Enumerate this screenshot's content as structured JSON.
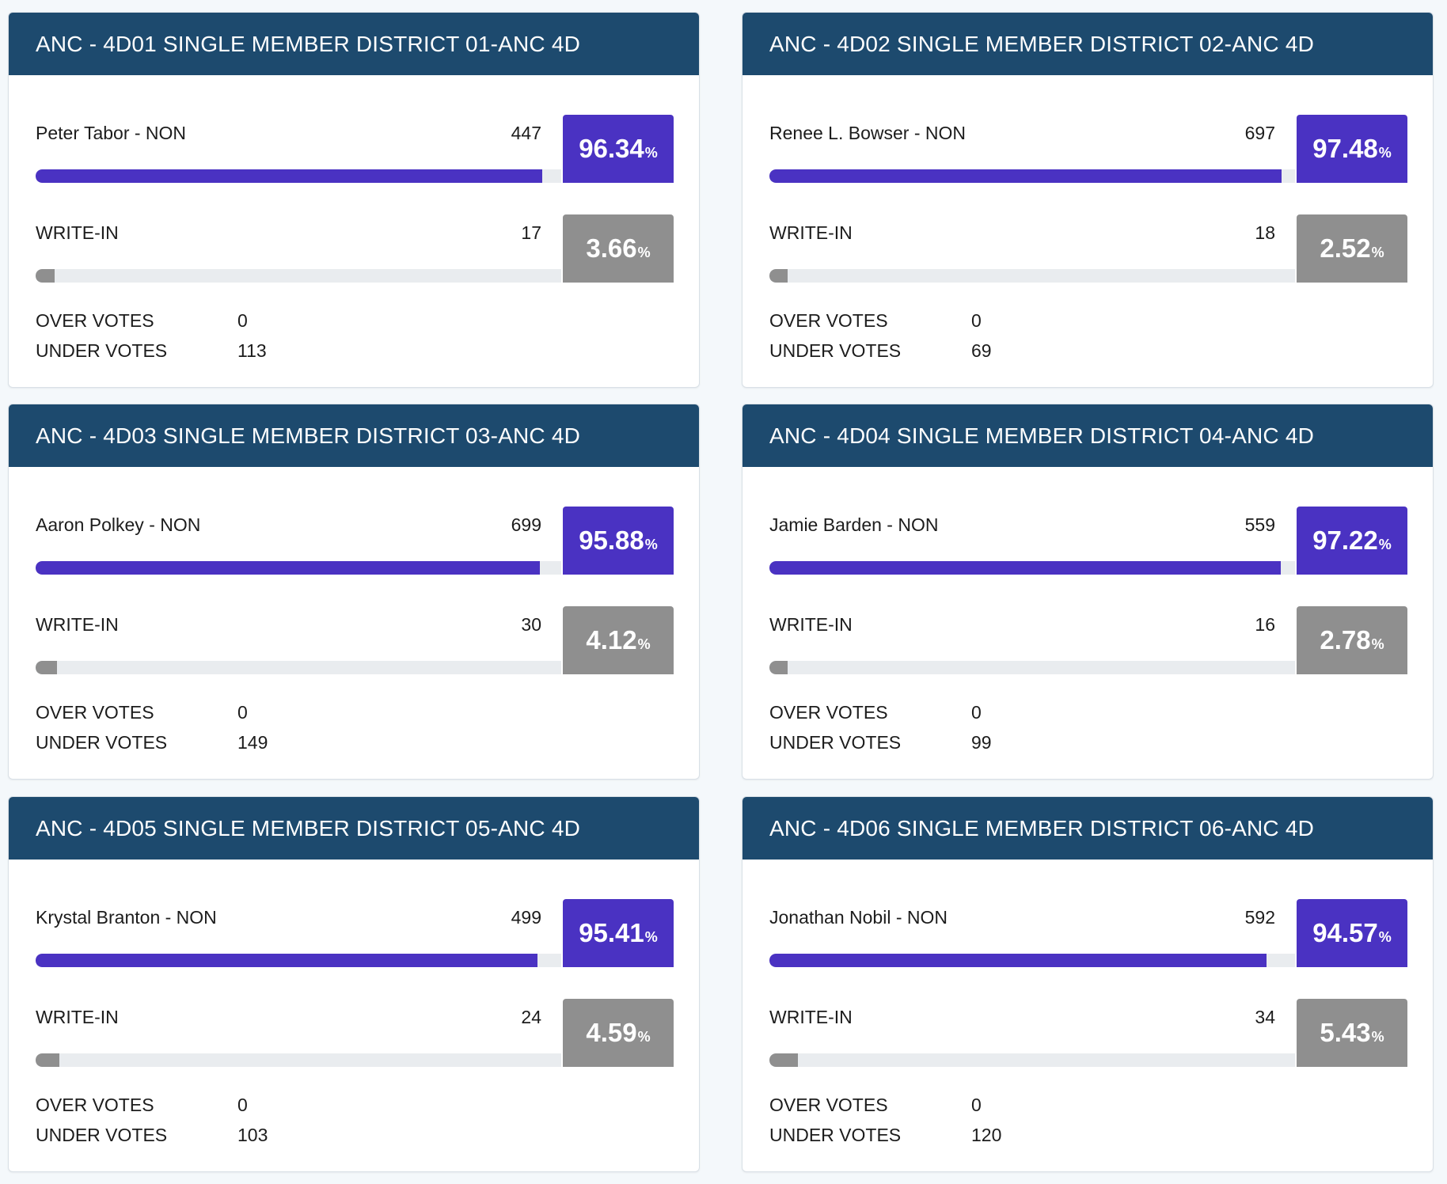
{
  "colors": {
    "header_bg": "#1d4a6e",
    "winner": "#4a32c2",
    "writein": "#8f8f8f"
  },
  "districts": [
    {
      "title": "ANC - 4D01 SINGLE MEMBER DISTRICT 01-ANC 4D",
      "candidates": [
        {
          "name": "Peter Tabor - NON",
          "votes": "447",
          "pct": "96.34",
          "pct_symbol": "%",
          "share": 96.34,
          "kind": "winner"
        },
        {
          "name": "WRITE-IN",
          "votes": "17",
          "pct": "3.66",
          "pct_symbol": "%",
          "share": 3.66,
          "kind": "writein"
        }
      ],
      "over_votes_label": "OVER VOTES",
      "over_votes": "0",
      "under_votes_label": "UNDER VOTES",
      "under_votes": "113"
    },
    {
      "title": "ANC - 4D02 SINGLE MEMBER DISTRICT 02-ANC 4D",
      "candidates": [
        {
          "name": "Renee L. Bowser - NON",
          "votes": "697",
          "pct": "97.48",
          "pct_symbol": "%",
          "share": 97.48,
          "kind": "winner"
        },
        {
          "name": "WRITE-IN",
          "votes": "18",
          "pct": "2.52",
          "pct_symbol": "%",
          "share": 2.52,
          "kind": "writein"
        }
      ],
      "over_votes_label": "OVER VOTES",
      "over_votes": "0",
      "under_votes_label": "UNDER VOTES",
      "under_votes": "69"
    },
    {
      "title": "ANC - 4D03 SINGLE MEMBER DISTRICT 03-ANC 4D",
      "candidates": [
        {
          "name": "Aaron Polkey - NON",
          "votes": "699",
          "pct": "95.88",
          "pct_symbol": "%",
          "share": 95.88,
          "kind": "winner"
        },
        {
          "name": "WRITE-IN",
          "votes": "30",
          "pct": "4.12",
          "pct_symbol": "%",
          "share": 4.12,
          "kind": "writein"
        }
      ],
      "over_votes_label": "OVER VOTES",
      "over_votes": "0",
      "under_votes_label": "UNDER VOTES",
      "under_votes": "149"
    },
    {
      "title": "ANC - 4D04 SINGLE MEMBER DISTRICT 04-ANC 4D",
      "candidates": [
        {
          "name": "Jamie Barden - NON",
          "votes": "559",
          "pct": "97.22",
          "pct_symbol": "%",
          "share": 97.22,
          "kind": "winner"
        },
        {
          "name": "WRITE-IN",
          "votes": "16",
          "pct": "2.78",
          "pct_symbol": "%",
          "share": 2.78,
          "kind": "writein"
        }
      ],
      "over_votes_label": "OVER VOTES",
      "over_votes": "0",
      "under_votes_label": "UNDER VOTES",
      "under_votes": "99"
    },
    {
      "title": "ANC - 4D05 SINGLE MEMBER DISTRICT 05-ANC 4D",
      "candidates": [
        {
          "name": "Krystal Branton - NON",
          "votes": "499",
          "pct": "95.41",
          "pct_symbol": "%",
          "share": 95.41,
          "kind": "winner"
        },
        {
          "name": "WRITE-IN",
          "votes": "24",
          "pct": "4.59",
          "pct_symbol": "%",
          "share": 4.59,
          "kind": "writein"
        }
      ],
      "over_votes_label": "OVER VOTES",
      "over_votes": "0",
      "under_votes_label": "UNDER VOTES",
      "under_votes": "103"
    },
    {
      "title": "ANC - 4D06 SINGLE MEMBER DISTRICT 06-ANC 4D",
      "candidates": [
        {
          "name": "Jonathan Nobil - NON",
          "votes": "592",
          "pct": "94.57",
          "pct_symbol": "%",
          "share": 94.57,
          "kind": "winner"
        },
        {
          "name": "WRITE-IN",
          "votes": "34",
          "pct": "5.43",
          "pct_symbol": "%",
          "share": 5.43,
          "kind": "writein"
        }
      ],
      "over_votes_label": "OVER VOTES",
      "over_votes": "0",
      "under_votes_label": "UNDER VOTES",
      "under_votes": "120"
    }
  ]
}
